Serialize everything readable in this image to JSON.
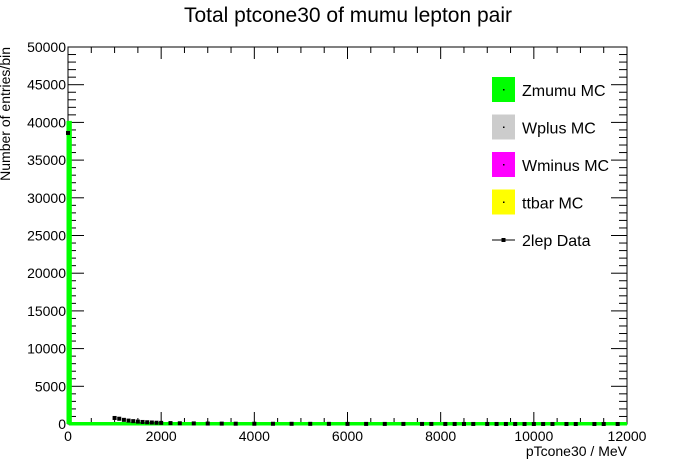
{
  "chart_data": {
    "type": "bar",
    "title": "Total ptcone30 of mumu lepton pair",
    "xlabel": "pTcone30 / MeV",
    "ylabel": "Number of entries/bin",
    "xlim": [
      0,
      12000
    ],
    "ylim": [
      0,
      50000
    ],
    "x_ticks": [
      0,
      2000,
      4000,
      6000,
      8000,
      10000,
      12000
    ],
    "y_ticks": [
      0,
      5000,
      10000,
      15000,
      20000,
      25000,
      30000,
      35000,
      40000,
      45000,
      50000
    ],
    "grid": false,
    "legend_position": "top-right",
    "legend": [
      {
        "label": "Zmumu MC",
        "color": "#00ff00",
        "style": "box"
      },
      {
        "label": "Wplus MC",
        "color": "#cccccc",
        "style": "box"
      },
      {
        "label": "Wminus MC",
        "color": "#ff00ff",
        "style": "box"
      },
      {
        "label": "ttbar MC",
        "color": "#ffff00",
        "style": "box"
      },
      {
        "label": "2lep Data",
        "color": "#000000",
        "style": "marker"
      }
    ],
    "series": [
      {
        "name": "Zmumu MC",
        "kind": "histogram",
        "color": "#00ff00",
        "x": [
          0,
          50
        ],
        "values": [
          40000,
          0
        ]
      },
      {
        "name": "2lep Data",
        "kind": "points",
        "color": "#000000",
        "x": [
          0,
          1000,
          1100,
          1200,
          1300,
          1400,
          1500,
          1600,
          1700,
          1800,
          1900,
          2000,
          2200,
          2400,
          2700,
          3000,
          3300,
          3600,
          4000,
          4400,
          4800,
          5200,
          5600,
          6000,
          6400,
          6800,
          7200,
          7600,
          7800,
          8100,
          8300,
          8500,
          8700,
          9000,
          9200,
          9400,
          9600,
          9800,
          10000,
          10200,
          10400,
          10700,
          10900,
          11300,
          11500,
          11800
        ],
        "values": [
          38600,
          800,
          700,
          550,
          450,
          380,
          320,
          270,
          230,
          200,
          170,
          150,
          120,
          95,
          75,
          60,
          50,
          40,
          35,
          30,
          25,
          20,
          18,
          15,
          12,
          10,
          9,
          8,
          7,
          6,
          5,
          5,
          4,
          4,
          3,
          3,
          3,
          2,
          2,
          2,
          2,
          1,
          1,
          1,
          1,
          1
        ]
      }
    ]
  }
}
